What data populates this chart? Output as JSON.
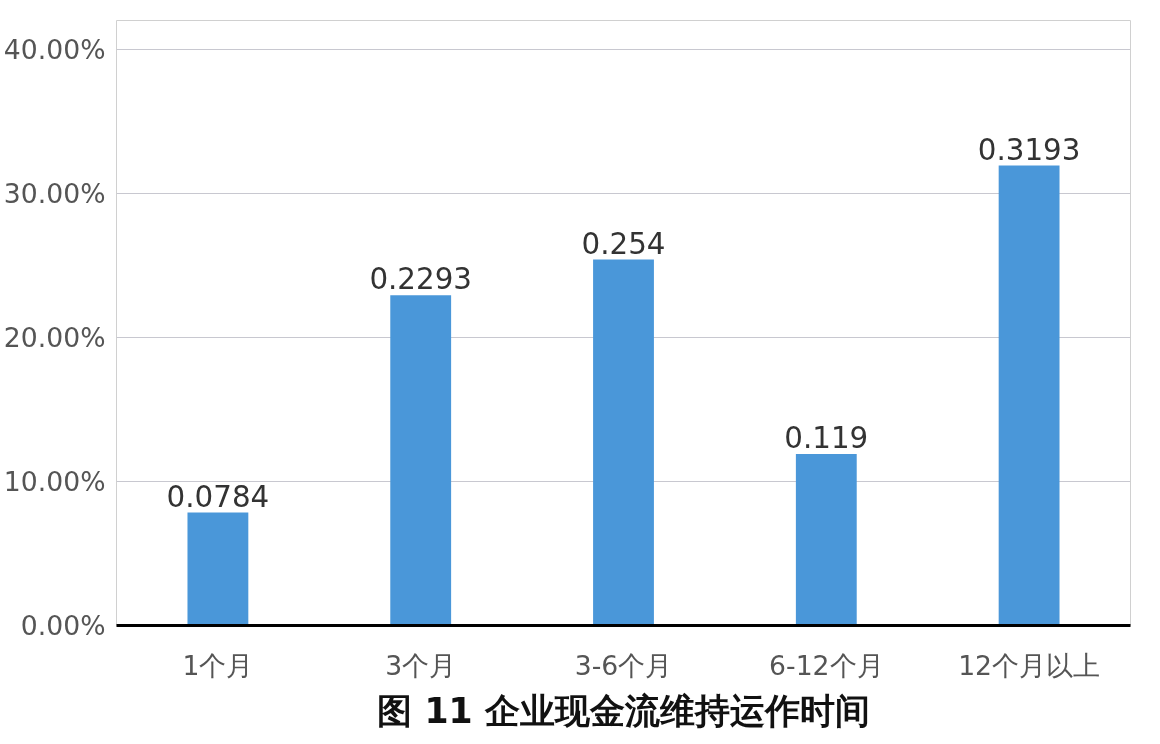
{
  "chart_data": {
    "type": "bar",
    "title": "图 11 企业现金流维持运作时间",
    "categories": [
      "1个月",
      "3个月",
      "3-6个月",
      "6-12个月",
      "12个月以上"
    ],
    "values": [
      0.0784,
      0.2293,
      0.254,
      0.119,
      0.3193
    ],
    "value_labels": [
      "0.0784",
      "0.2293",
      "0.254",
      "0.119",
      "0.3193"
    ],
    "color": "#4a97d9",
    "ylim": [
      0,
      0.42
    ],
    "yticks": [
      {
        "value": 0,
        "label": "0.00%"
      },
      {
        "value": 0.1,
        "label": "10.00%"
      },
      {
        "value": 0.2,
        "label": "20.00%"
      },
      {
        "value": 0.3,
        "label": "30.00%"
      },
      {
        "value": 0.4,
        "label": "40.00%"
      }
    ],
    "grid": "y"
  }
}
